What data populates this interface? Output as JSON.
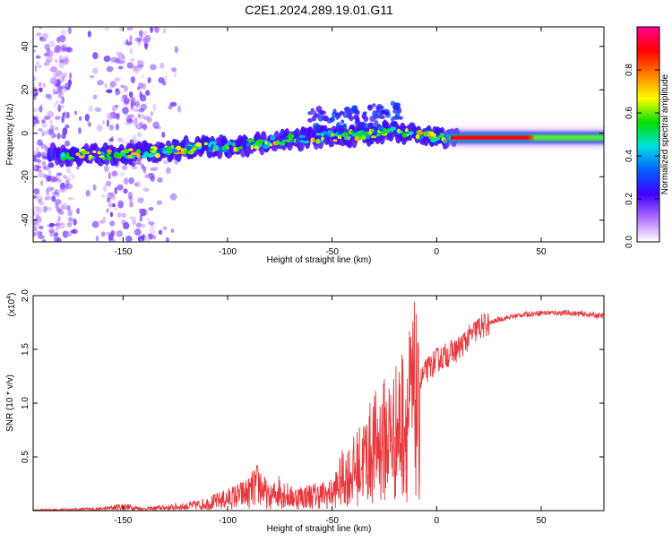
{
  "title": "C2E1.2024.289.19.01.G11",
  "chart_data": [
    {
      "type": "heatmap",
      "xlabel": "Height of straight line (km)",
      "ylabel": "Frequency (Hz)",
      "xlim": [
        -193,
        80
      ],
      "ylim": [
        -50,
        49
      ],
      "xticks": [
        -150,
        -100,
        -50,
        0,
        50
      ],
      "yticks": [
        -40,
        -20,
        0,
        20,
        40
      ],
      "colorbar": {
        "label": "Normalized spectral amplitude",
        "range": [
          0,
          1
        ],
        "ticks": [
          "0.0",
          "0.2",
          "0.4",
          "0.6",
          "0.8"
        ],
        "colors": [
          "#ffffff",
          "#b070ff",
          "#4000ff",
          "#0060ff",
          "#00e0e0",
          "#00e000",
          "#ffff00",
          "#ff8000",
          "#ff0000",
          "#ff0090"
        ]
      },
      "ridge": {
        "x": [
          -180,
          -160,
          -140,
          -120,
          -100,
          -80,
          -60,
          -40,
          -20,
          -10,
          0,
          10,
          30,
          50,
          80
        ],
        "y": [
          -10,
          -10,
          -9,
          -7,
          -6,
          -4,
          -2,
          -1,
          1,
          0,
          -2,
          -2,
          -2,
          -2,
          -2
        ]
      },
      "grid": false
    },
    {
      "type": "line",
      "xlabel": "Height of straight line (km)",
      "ylabel": "SNR (10 * v/v)",
      "multiplier": "(x10",
      "multiplier_exp": "4",
      "multiplier_close": ")",
      "xlim": [
        -193,
        80
      ],
      "ylim": [
        0,
        2.0
      ],
      "xticks": [
        -150,
        -100,
        -50,
        0,
        50
      ],
      "yticks": [
        "0.5",
        "1.0",
        "1.5",
        "2.0"
      ],
      "color": "#e8383c",
      "series": [
        {
          "x": [
            -193,
            -160,
            -150,
            -140,
            -120,
            -110,
            -100,
            -90,
            -85,
            -80,
            -75,
            -70,
            -60,
            -50,
            -45,
            -40,
            -35,
            -30,
            -25,
            -20,
            -15,
            -12,
            -10,
            -8,
            -5,
            0,
            5,
            10,
            15,
            20,
            30,
            40,
            50,
            60,
            70,
            80
          ],
          "y": [
            0.01,
            0.03,
            0.07,
            0.03,
            0.07,
            0.12,
            0.2,
            0.3,
            0.45,
            0.2,
            0.35,
            0.22,
            0.25,
            0.28,
            0.55,
            0.65,
            0.85,
            1.05,
            1.2,
            1.3,
            1.55,
            1.75,
            1.9,
            1.2,
            1.3,
            1.4,
            1.45,
            1.5,
            1.6,
            1.7,
            1.78,
            1.82,
            1.84,
            1.84,
            1.83,
            1.81
          ]
        }
      ],
      "grid": false
    }
  ]
}
